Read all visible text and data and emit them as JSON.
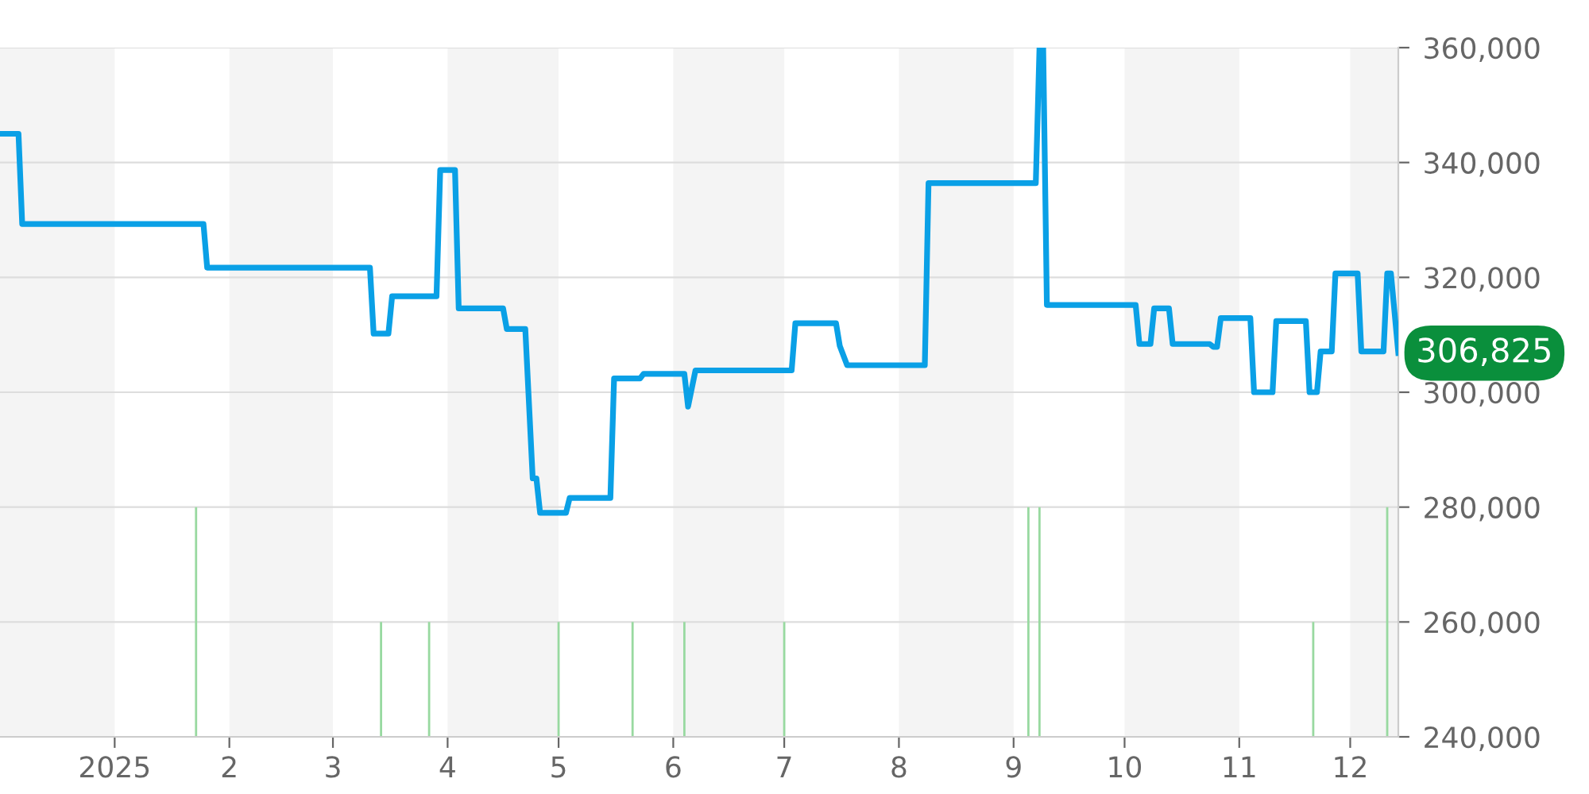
{
  "chart_data": {
    "type": "line",
    "xlim": [
      "2024-12-01",
      "2025-12-14"
    ],
    "ylim": [
      240000,
      360000
    ],
    "yticks": [
      {
        "value": 240000,
        "label": "240,000"
      },
      {
        "value": 260000,
        "label": "260,000"
      },
      {
        "value": 280000,
        "label": "280,000"
      },
      {
        "value": 300000,
        "label": "300,000"
      },
      {
        "value": 320000,
        "label": "320,000"
      },
      {
        "value": 340000,
        "label": "340,000"
      },
      {
        "value": 360000,
        "label": "360,000"
      }
    ],
    "xticks": [
      {
        "value": "2025-01-01",
        "label": "2025"
      },
      {
        "value": "2025-02-01",
        "label": "2"
      },
      {
        "value": "2025-03-01",
        "label": "3"
      },
      {
        "value": "2025-04-01",
        "label": "4"
      },
      {
        "value": "2025-05-01",
        "label": "5"
      },
      {
        "value": "2025-06-01",
        "label": "6"
      },
      {
        "value": "2025-07-01",
        "label": "7"
      },
      {
        "value": "2025-08-01",
        "label": "8"
      },
      {
        "value": "2025-09-01",
        "label": "9"
      },
      {
        "value": "2025-10-01",
        "label": "10"
      },
      {
        "value": "2025-11-01",
        "label": "11"
      },
      {
        "value": "2025-12-01",
        "label": "12"
      }
    ],
    "grid": "y",
    "legend": false,
    "marker": "none",
    "line_style": "solid",
    "bands": [
      {
        "axis": "x",
        "from": "2024-12-01",
        "to": "2025-01-01",
        "color": "#f4f4f4"
      },
      {
        "axis": "x",
        "from": "2025-02-01",
        "to": "2025-03-01",
        "color": "#f4f4f4"
      },
      {
        "axis": "x",
        "from": "2025-04-01",
        "to": "2025-05-01",
        "color": "#f4f4f4"
      },
      {
        "axis": "x",
        "from": "2025-06-01",
        "to": "2025-07-01",
        "color": "#f4f4f4"
      },
      {
        "axis": "x",
        "from": "2025-08-01",
        "to": "2025-09-01",
        "color": "#f4f4f4"
      },
      {
        "axis": "x",
        "from": "2025-10-01",
        "to": "2025-11-01",
        "color": "#f4f4f4"
      },
      {
        "axis": "x",
        "from": "2025-12-01",
        "to": "2025-12-14",
        "color": "#f4f4f4"
      }
    ],
    "series": [
      {
        "type": "bar",
        "color": "#98d9a0",
        "base": [
          240000,
          240000,
          240000,
          240000,
          240000,
          240000,
          240000,
          240000,
          240000,
          240000,
          240000
        ],
        "x": [
          "2025-01-23",
          "2025-03-14",
          "2025-03-27",
          "2025-05-01",
          "2025-05-21",
          "2025-06-04",
          "2025-07-01",
          "2025-09-05",
          "2025-09-08",
          "2025-11-21",
          "2025-12-11"
        ],
        "values": [
          40000,
          20000,
          20000,
          20000,
          20000,
          20000,
          20000,
          40000,
          40000,
          20000,
          40000
        ]
      },
      {
        "color": "#0aa0e6",
        "x": [
          "2024-12-01",
          "2024-12-06",
          "2024-12-07",
          "2025-01-25",
          "2025-01-26",
          "2025-03-11",
          "2025-03-12",
          "2025-03-16",
          "2025-03-17",
          "2025-03-29",
          "2025-03-30",
          "2025-04-03",
          "2025-04-04",
          "2025-04-16",
          "2025-04-17",
          "2025-04-22",
          "2025-04-24",
          "2025-04-25",
          "2025-04-26",
          "2025-05-03",
          "2025-05-04",
          "2025-05-15",
          "2025-05-16",
          "2025-05-23",
          "2025-05-24",
          "2025-06-04",
          "2025-06-05",
          "2025-06-07",
          "2025-07-03",
          "2025-07-04",
          "2025-07-15",
          "2025-07-16",
          "2025-07-18",
          "2025-08-08",
          "2025-08-09",
          "2025-09-07",
          "2025-09-08",
          "2025-09-09",
          "2025-09-10",
          "2025-10-04",
          "2025-10-05",
          "2025-10-08",
          "2025-10-09",
          "2025-10-13",
          "2025-10-14",
          "2025-10-24",
          "2025-10-25",
          "2025-10-26",
          "2025-10-27",
          "2025-11-04",
          "2025-11-05",
          "2025-11-10",
          "2025-11-11",
          "2025-11-19",
          "2025-11-20",
          "2025-11-22",
          "2025-11-23",
          "2025-11-26",
          "2025-11-27",
          "2025-12-03",
          "2025-12-04",
          "2025-12-10",
          "2025-12-11",
          "2025-12-12",
          "2025-12-14"
        ],
        "values": [
          345000,
          345000,
          329300,
          329300,
          321700,
          321700,
          310200,
          310200,
          316700,
          316700,
          338700,
          338700,
          314600,
          314600,
          311000,
          311000,
          285000,
          285000,
          279000,
          279000,
          281600,
          281600,
          302400,
          302400,
          303200,
          303200,
          297500,
          303800,
          303800,
          312000,
          312000,
          308100,
          304700,
          304700,
          336400,
          336400,
          360000,
          360000,
          315200,
          315200,
          308400,
          308400,
          314600,
          314600,
          308400,
          308400,
          307900,
          307900,
          312900,
          312900,
          300000,
          300000,
          312400,
          312400,
          300000,
          300000,
          307100,
          307100,
          320700,
          320700,
          307100,
          307100,
          320700,
          320700,
          306825
        ]
      }
    ],
    "annotations": [
      {
        "text": "306,825",
        "x": "2025-12-14",
        "y": 306825
      }
    ]
  }
}
